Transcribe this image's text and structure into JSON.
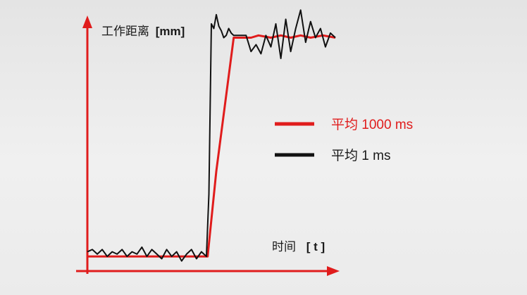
{
  "chart_data": {
    "type": "line",
    "ylabel": "工作距离",
    "ylabel_unit": "[mm]",
    "xlabel": "时间",
    "xlabel_unit": "[ t ]",
    "xlim": [
      0,
      100
    ],
    "ylim": [
      0,
      100
    ],
    "grid": false,
    "legend_position": "right",
    "colors": {
      "axes": "#e01c1c",
      "avg_1000": "#e01c1c",
      "avg_1": "#111111"
    },
    "series": [
      {
        "name": "平均 1000 ms",
        "color": "#e01c1c",
        "x": [
          0,
          48,
          48.5,
          52,
          59,
          66,
          69,
          74,
          78,
          82,
          86,
          90,
          95,
          100
        ],
        "y": [
          3,
          3,
          3,
          40,
          98,
          98,
          99,
          98,
          99,
          98,
          99,
          98,
          99,
          98
        ]
      },
      {
        "name": "平均 1 ms",
        "color": "#111111",
        "x": [
          0,
          2,
          4,
          6,
          8,
          10,
          12,
          14,
          16,
          18,
          20,
          22,
          24,
          26,
          28,
          30,
          32,
          34,
          36,
          38,
          40,
          42,
          44,
          46,
          48,
          49,
          50,
          51,
          52,
          53,
          54,
          55,
          56,
          57,
          58,
          59,
          60,
          62,
          64,
          66,
          68,
          70,
          72,
          74,
          76,
          78,
          80,
          82,
          84,
          86,
          88,
          90,
          92,
          94,
          96,
          98,
          100
        ],
        "y": [
          5,
          6,
          4,
          6,
          3,
          5,
          4,
          6,
          3,
          5,
          4,
          7,
          3,
          6,
          4,
          2,
          6,
          3,
          5,
          1,
          4,
          6,
          2,
          5,
          3,
          30,
          104,
          102,
          108,
          103,
          101,
          98,
          99,
          102,
          100,
          99,
          99,
          99,
          99,
          92,
          95,
          91,
          99,
          94,
          104,
          89,
          106,
          92,
          102,
          110,
          96,
          105,
          98,
          102,
          94,
          100,
          98
        ]
      }
    ]
  }
}
